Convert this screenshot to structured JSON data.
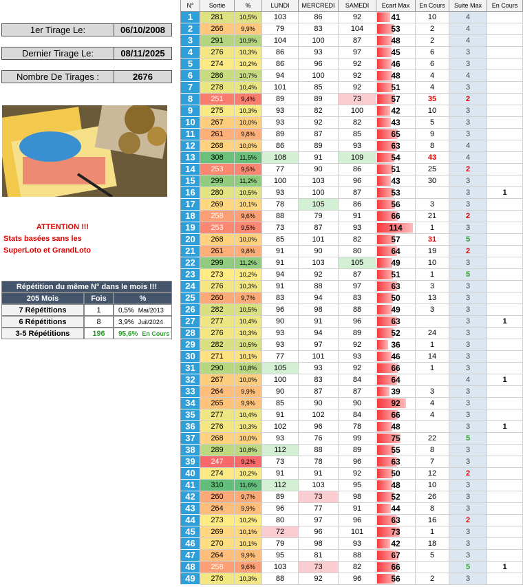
{
  "info": [
    {
      "label": "1er Tirage Le:",
      "value": "06/10/2008"
    },
    {
      "label": "Dernier Tirage Le:",
      "value": "08/11/2025"
    },
    {
      "label": "Nombre De Tirages :",
      "value": "2676"
    }
  ],
  "notice": {
    "title": "ATTENTION !!!",
    "lines": [
      "Stats basées sans les",
      "SuperLoto et GrandLoto"
    ]
  },
  "repetition": {
    "title": "Répétition du même N° dans le mois !!!",
    "headers": [
      "205 Mois",
      "Fois",
      "%"
    ],
    "rows": [
      [
        "7 Répétitions",
        "1",
        "0,5%",
        "Mai/2013"
      ],
      [
        "6 Répétitions",
        "8",
        "3,9%",
        "Juil/2024"
      ],
      [
        "3-5 Répétitions",
        "196",
        "95,6%",
        "En Cours"
      ]
    ]
  },
  "table": {
    "headers": [
      "N°",
      "Sortie",
      "%",
      "LUNDI",
      "MERCREDI",
      "SAMEDI",
      "Ecart Max",
      "En Cours",
      "Suite Max",
      "En Cours"
    ],
    "rows": [
      [
        "1",
        "281",
        "10,5%",
        "103",
        "86",
        "92",
        "41",
        "10",
        "4",
        null
      ],
      [
        "2",
        "266",
        "9,9%",
        "79",
        "83",
        "104",
        "53",
        "2",
        "4",
        null
      ],
      [
        "3",
        "291",
        "10,9%",
        "104",
        "100",
        "87",
        "48",
        "2",
        "4",
        null
      ],
      [
        "4",
        "276",
        "10,3%",
        "86",
        "93",
        "97",
        "45",
        "6",
        "3",
        null
      ],
      [
        "5",
        "274",
        "10,2%",
        "86",
        "96",
        "92",
        "46",
        "6",
        "3",
        null
      ],
      [
        "6",
        "286",
        "10,7%",
        "94",
        "100",
        "92",
        "48",
        "4",
        "4",
        null
      ],
      [
        "7",
        "278",
        "10,4%",
        "101",
        "85",
        "92",
        "51",
        "4",
        "3",
        null
      ],
      [
        "8",
        "251",
        "9,4%",
        "89",
        "89",
        "73",
        "57",
        "35",
        "2",
        null
      ],
      [
        "9",
        "275",
        "10,3%",
        "93",
        "82",
        "100",
        "42",
        "10",
        "3",
        null
      ],
      [
        "10",
        "267",
        "10,0%",
        "93",
        "92",
        "82",
        "43",
        "5",
        "3",
        null
      ],
      [
        "11",
        "261",
        "9,8%",
        "89",
        "87",
        "85",
        "65",
        "9",
        "3",
        null
      ],
      [
        "12",
        "268",
        "10,0%",
        "86",
        "89",
        "93",
        "63",
        "8",
        "4",
        null
      ],
      [
        "13",
        "308",
        "11,5%",
        "108",
        "91",
        "109",
        "54",
        "43",
        "4",
        null
      ],
      [
        "14",
        "253",
        "9,5%",
        "77",
        "90",
        "86",
        "51",
        "25",
        "2",
        null
      ],
      [
        "15",
        "299",
        "11,2%",
        "100",
        "103",
        "96",
        "43",
        "30",
        "3",
        null
      ],
      [
        "16",
        "280",
        "10,5%",
        "93",
        "100",
        "87",
        "53",
        null,
        "3",
        "1"
      ],
      [
        "17",
        "269",
        "10,1%",
        "78",
        "105",
        "86",
        "56",
        "3",
        "3",
        null
      ],
      [
        "18",
        "258",
        "9,6%",
        "88",
        "79",
        "91",
        "66",
        "21",
        "2",
        null
      ],
      [
        "19",
        "253",
        "9,5%",
        "73",
        "87",
        "93",
        "114",
        "1",
        "3",
        null
      ],
      [
        "20",
        "268",
        "10,0%",
        "85",
        "101",
        "82",
        "57",
        "31",
        "5",
        null
      ],
      [
        "21",
        "261",
        "9,8%",
        "91",
        "90",
        "80",
        "64",
        "19",
        "2",
        null
      ],
      [
        "22",
        "299",
        "11,2%",
        "91",
        "103",
        "105",
        "49",
        "10",
        "3",
        null
      ],
      [
        "23",
        "273",
        "10,2%",
        "94",
        "92",
        "87",
        "51",
        "1",
        "5",
        null
      ],
      [
        "24",
        "276",
        "10,3%",
        "91",
        "88",
        "97",
        "63",
        "3",
        "3",
        null
      ],
      [
        "25",
        "260",
        "9,7%",
        "83",
        "94",
        "83",
        "50",
        "13",
        "3",
        null
      ],
      [
        "26",
        "282",
        "10,5%",
        "96",
        "98",
        "88",
        "49",
        "3",
        "3",
        null
      ],
      [
        "27",
        "277",
        "10,4%",
        "90",
        "91",
        "96",
        "63",
        null,
        "3",
        "1"
      ],
      [
        "28",
        "276",
        "10,3%",
        "93",
        "94",
        "89",
        "52",
        "24",
        "3",
        null
      ],
      [
        "29",
        "282",
        "10,5%",
        "93",
        "97",
        "92",
        "36",
        "1",
        "3",
        null
      ],
      [
        "30",
        "271",
        "10,1%",
        "77",
        "101",
        "93",
        "46",
        "14",
        "3",
        null
      ],
      [
        "31",
        "290",
        "10,8%",
        "105",
        "93",
        "92",
        "66",
        "1",
        "3",
        null
      ],
      [
        "32",
        "267",
        "10,0%",
        "100",
        "83",
        "84",
        "64",
        null,
        "4",
        "1"
      ],
      [
        "33",
        "264",
        "9,9%",
        "90",
        "87",
        "87",
        "39",
        "3",
        "3",
        null
      ],
      [
        "34",
        "265",
        "9,9%",
        "85",
        "90",
        "90",
        "92",
        "4",
        "3",
        null
      ],
      [
        "35",
        "277",
        "10,4%",
        "91",
        "102",
        "84",
        "66",
        "4",
        "3",
        null
      ],
      [
        "36",
        "276",
        "10,3%",
        "102",
        "96",
        "78",
        "48",
        null,
        "3",
        "1"
      ],
      [
        "37",
        "268",
        "10,0%",
        "93",
        "76",
        "99",
        "75",
        "22",
        "5",
        null
      ],
      [
        "38",
        "289",
        "10,8%",
        "112",
        "88",
        "89",
        "55",
        "8",
        "3",
        null
      ],
      [
        "39",
        "247",
        "9,2%",
        "73",
        "78",
        "96",
        "63",
        "7",
        "3",
        null
      ],
      [
        "40",
        "274",
        "10,2%",
        "91",
        "91",
        "92",
        "50",
        "12",
        "2",
        null
      ],
      [
        "41",
        "310",
        "11,6%",
        "112",
        "103",
        "95",
        "48",
        "10",
        "3",
        null
      ],
      [
        "42",
        "260",
        "9,7%",
        "89",
        "73",
        "98",
        "52",
        "26",
        "3",
        null
      ],
      [
        "43",
        "264",
        "9,9%",
        "96",
        "77",
        "91",
        "44",
        "8",
        "3",
        null
      ],
      [
        "44",
        "273",
        "10,2%",
        "80",
        "97",
        "96",
        "63",
        "16",
        "2",
        null
      ],
      [
        "45",
        "269",
        "10,1%",
        "72",
        "96",
        "101",
        "73",
        "1",
        "3",
        null
      ],
      [
        "46",
        "270",
        "10,1%",
        "79",
        "98",
        "93",
        "42",
        "18",
        "3",
        null
      ],
      [
        "47",
        "264",
        "9,9%",
        "95",
        "81",
        "88",
        "67",
        "5",
        "3",
        null
      ],
      [
        "48",
        "258",
        "9,6%",
        "103",
        "73",
        "82",
        "66",
        null,
        "5",
        "1"
      ],
      [
        "49",
        "276",
        "10,3%",
        "88",
        "92",
        "96",
        "56",
        "2",
        "3",
        null
      ]
    ]
  }
}
